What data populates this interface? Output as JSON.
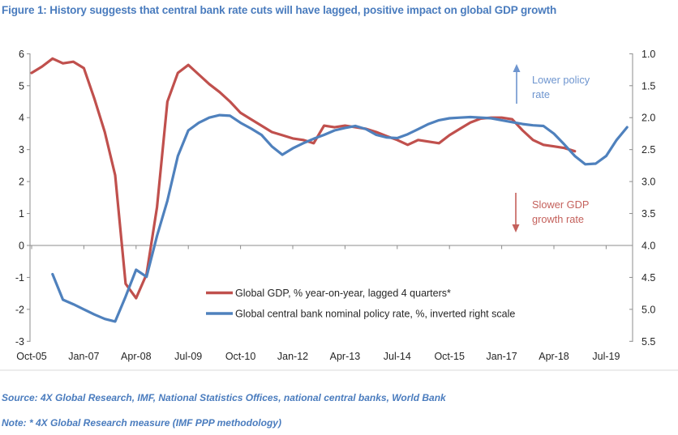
{
  "page": {
    "title": "Figure 1: History suggests that central bank rate cuts will have lagged, positive impact on global GDP growth",
    "source_line": "Source: 4X Global Research, IMF, National Statistics Offices, national central banks, World Bank",
    "note_line": "Note: * 4X Global Research measure (IMF PPP methodology)"
  },
  "colors": {
    "title_blue": "#4A7CBE",
    "gdp_red": "#C0504D",
    "policy_blue": "#4F81BD",
    "annotation_blue": "#6E95CF",
    "annotation_red": "#C4615C",
    "axis_line_gray": "#8C8C8C",
    "border_light_gray": "#D9D9D9",
    "axis_text": "#262626"
  },
  "chart_data": {
    "type": "line",
    "x_axis": {
      "unit": "quarterly",
      "tick_labels": [
        "Oct-05",
        "Jan-07",
        "Apr-08",
        "Jul-09",
        "Oct-10",
        "Jan-12",
        "Apr-13",
        "Jul-14",
        "Oct-15",
        "Jan-17",
        "Apr-18",
        "Jul-19"
      ],
      "ticks_every_n_quarters": 5
    },
    "left_axis": {
      "min": -3,
      "max": 6,
      "ticks": [
        6,
        5,
        4,
        3,
        2,
        1,
        0,
        -1,
        -2,
        -3
      ]
    },
    "right_axis": {
      "inverted": true,
      "min": 1.0,
      "max": 5.5,
      "ticks": [
        "1.0",
        "1.5",
        "2.0",
        "2.5",
        "3.0",
        "3.5",
        "4.0",
        "4.5",
        "5.0",
        "5.5"
      ]
    },
    "legend_position": "inside-bottom-center",
    "grid": "zero-line-only",
    "series": [
      {
        "id": "global-gdp",
        "name": "Global GDP, % year-on-year,  lagged 4 quarters*",
        "color": "#C0504D",
        "axis": "left",
        "start_quarter_index": 0,
        "quarterly_values": [
          5.4,
          5.6,
          5.85,
          5.7,
          5.75,
          5.55,
          4.6,
          3.55,
          2.2,
          -1.2,
          -1.65,
          -0.9,
          1.2,
          4.5,
          5.4,
          5.65,
          5.35,
          5.05,
          4.8,
          4.5,
          4.15,
          3.95,
          3.75,
          3.55,
          3.45,
          3.35,
          3.3,
          3.2,
          3.75,
          3.7,
          3.75,
          3.7,
          3.65,
          3.55,
          3.42,
          3.3,
          3.15,
          3.3,
          3.25,
          3.2,
          3.45,
          3.65,
          3.85,
          3.97,
          4.0,
          4.0,
          3.95,
          3.6,
          3.3,
          3.15,
          3.1,
          3.05,
          2.95
        ]
      },
      {
        "id": "global-policy-rate",
        "name": "Global central bank nominal policy rate, %, inverted right scale",
        "color": "#4F81BD",
        "axis": "right",
        "start_quarter_index": 2,
        "quarterly_values": [
          4.45,
          4.85,
          4.92,
          5.0,
          5.08,
          5.15,
          5.19,
          4.8,
          4.38,
          4.49,
          3.85,
          3.3,
          2.6,
          2.2,
          2.08,
          2.0,
          1.96,
          1.97,
          2.08,
          2.17,
          2.27,
          2.45,
          2.58,
          2.48,
          2.4,
          2.33,
          2.27,
          2.2,
          2.16,
          2.13,
          2.18,
          2.27,
          2.31,
          2.32,
          2.26,
          2.18,
          2.1,
          2.04,
          2.01,
          2.0,
          1.99,
          2.0,
          2.01,
          2.04,
          2.07,
          2.1,
          2.12,
          2.13,
          2.25,
          2.42,
          2.6,
          2.73,
          2.72,
          2.6,
          2.35,
          2.15
        ]
      }
    ],
    "annotations": [
      {
        "id": "lower-policy-rate",
        "line1": "Lower policy",
        "line2": "rate",
        "direction": "up"
      },
      {
        "id": "slower-gdp-growth",
        "line1": "Slower GDP",
        "line2": "growth rate",
        "direction": "down"
      }
    ]
  }
}
